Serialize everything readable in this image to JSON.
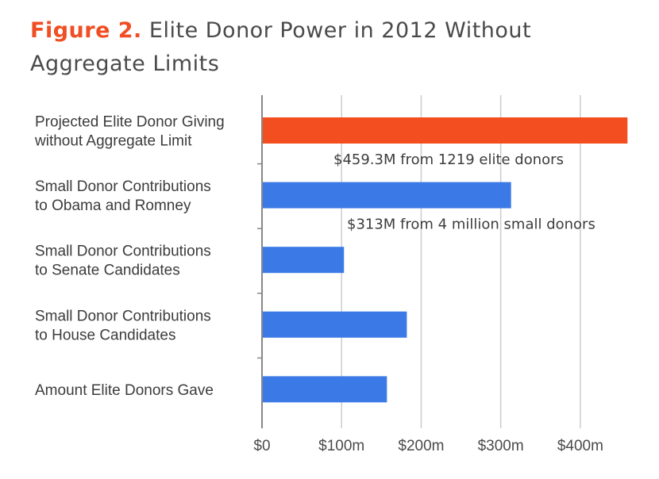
{
  "title": {
    "figure_label": "Figure 2.",
    "text": "Elite Donor Power in 2012 Without Aggregate Limits"
  },
  "colors": {
    "highlight": "#f34e1f",
    "bar": "#3b7ae6",
    "grid": "#cccccc",
    "axis": "#888888"
  },
  "chart_data": {
    "type": "bar",
    "orientation": "horizontal",
    "categories": [
      [
        "Projected Elite Donor Giving",
        "without Aggregate Limit"
      ],
      [
        "Small Donor Contributions",
        "to Obama and Romney"
      ],
      [
        "Small Donor Contributions",
        "to Senate Candidates"
      ],
      [
        "Small Donor Contributions",
        "to House Candidates"
      ],
      [
        "Amount Elite Donors Gave"
      ]
    ],
    "values": [
      459.3,
      313,
      103,
      182,
      157
    ],
    "highlight_index": 0,
    "xlim": [
      0,
      460
    ],
    "x_ticks": [
      0,
      100,
      200,
      300,
      400
    ],
    "x_tick_labels": [
      "$0",
      "$100m",
      "$200m",
      "$300m",
      "$400m"
    ],
    "grid": true,
    "annotations": [
      {
        "text": "$459.3M from 1219 elite donors",
        "bar_index": 0
      },
      {
        "text": "$313M from 4 million small donors",
        "bar_index": 1
      }
    ]
  }
}
